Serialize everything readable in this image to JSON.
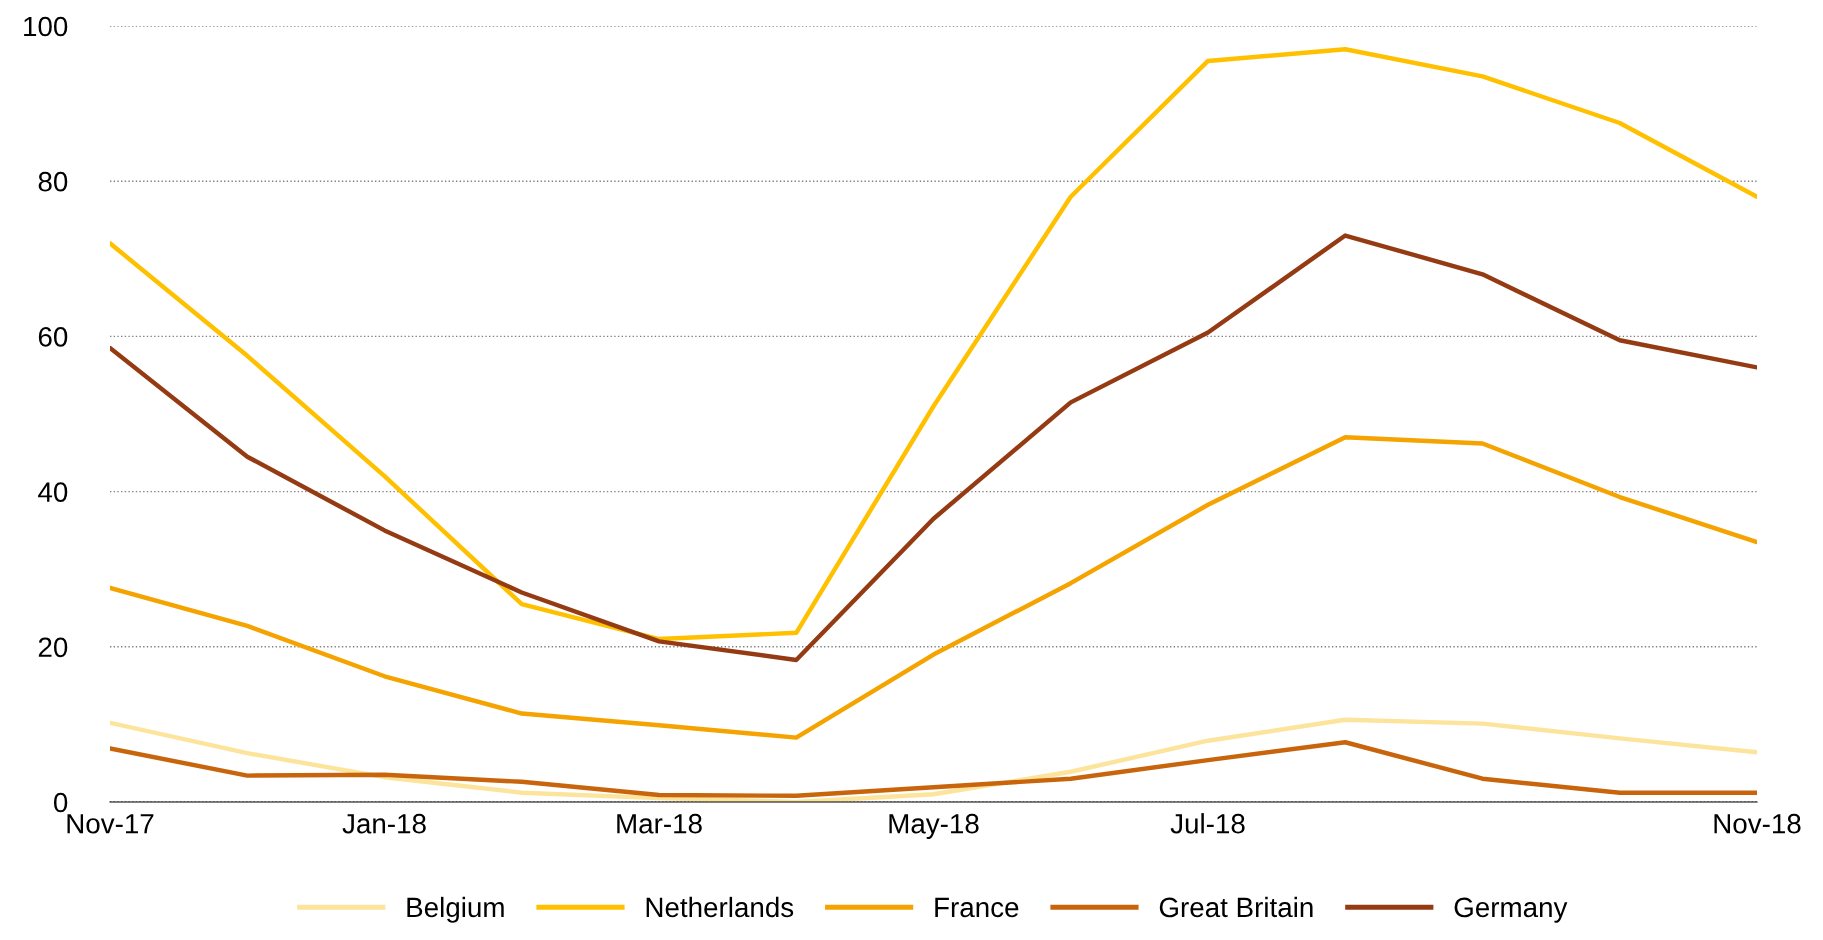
{
  "chart_data": {
    "type": "line",
    "categories": [
      "Nov-17",
      null,
      "Jan-18",
      null,
      "Mar-18",
      null,
      "May-18",
      null,
      "Jul-18",
      null,
      null,
      null,
      "Nov-18"
    ],
    "series": [
      {
        "name": "Belgium",
        "color": "#fde49c",
        "values": [
          10.2,
          6.3,
          3.2,
          1.2,
          0.5,
          0.0,
          1.0,
          3.9,
          7.9,
          10.6,
          10.1,
          8.2,
          6.4
        ]
      },
      {
        "name": "Netherlands",
        "color": "#ffc000",
        "values": [
          72,
          57.5,
          42,
          25.5,
          21,
          21.8,
          51,
          78,
          95.5,
          97,
          93.5,
          87.5,
          78
        ]
      },
      {
        "name": "France",
        "color": "#f4a300",
        "values": [
          27.6,
          22.7,
          16.2,
          11.4,
          9.9,
          8.3,
          19,
          28.2,
          38.3,
          47,
          46.2,
          39.3,
          33.5
        ]
      },
      {
        "name": "Great Britain",
        "color": "#c8650c",
        "values": [
          6.9,
          3.4,
          3.5,
          2.6,
          0.9,
          0.8,
          1.9,
          3.0,
          5.4,
          7.7,
          3.0,
          1.2,
          1.2
        ]
      },
      {
        "name": "Germany",
        "color": "#953b13",
        "values": [
          58.5,
          44.5,
          35,
          27,
          20.7,
          18.3,
          36.5,
          51.5,
          60.5,
          73,
          68,
          59.5,
          56
        ]
      }
    ],
    "ylim": [
      0,
      100
    ],
    "yticks": [
      0,
      20,
      40,
      60,
      80,
      100
    ],
    "grid": "y",
    "legend": "bottom",
    "marker": "none",
    "line_style": "solid"
  }
}
